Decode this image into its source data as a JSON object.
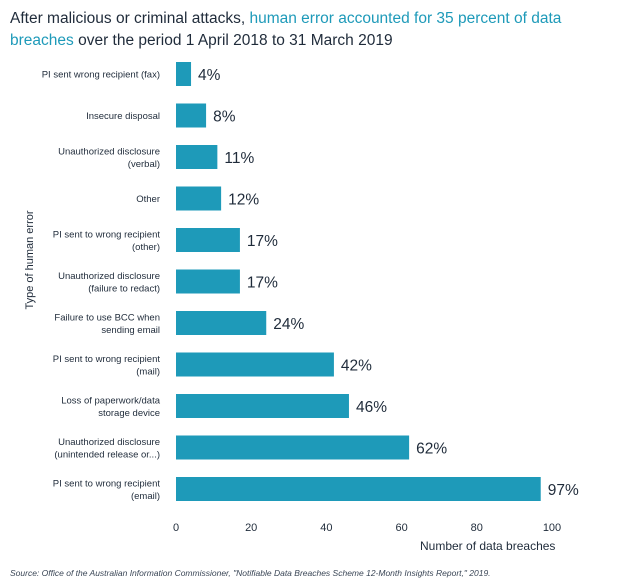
{
  "title": {
    "part1": "After malicious or criminal attacks, ",
    "highlight": "human error accounted for 35 percent of data breaches",
    "part2": " over the period 1 April 2018 to 31 March 2019"
  },
  "source": "Source: Office of the Australian Information Commissioner, \"Notifiable Data Breaches Scheme 12-Month Insights Report,\" 2019.",
  "colors": {
    "bar": "#1e9ab9",
    "highlight": "#1e9ab9",
    "text": "#1f2b3a"
  },
  "chart_data": {
    "type": "bar",
    "orientation": "horizontal",
    "ylabel": "Type of  human error",
    "xlabel": "Number of data breaches",
    "xlim": [
      0,
      100
    ],
    "xticks": [
      0,
      20,
      40,
      60,
      80,
      100
    ],
    "grid": false,
    "categories": [
      [
        "PI sent wrong recipient (fax)"
      ],
      [
        "Insecure disposal"
      ],
      [
        "Unauthorized disclosure",
        "(verbal)"
      ],
      [
        "Other"
      ],
      [
        "PI sent to wrong recipient",
        "(other)"
      ],
      [
        "Unauthorized disclosure",
        "(failure to redact)"
      ],
      [
        "Failure to use BCC when",
        "sending email"
      ],
      [
        "PI sent to wrong recipient",
        "(mail)"
      ],
      [
        "Loss of paperwork/data",
        "storage device"
      ],
      [
        "Unauthorized disclosure",
        "(unintended release or...)"
      ],
      [
        "PI sent to wrong recipient",
        "(email)"
      ]
    ],
    "values": [
      4,
      8,
      11,
      12,
      17,
      17,
      24,
      42,
      46,
      62,
      97
    ],
    "labels": [
      "4%",
      "8%",
      "11%",
      "12%",
      "17%",
      "17%",
      "24%",
      "42%",
      "46%",
      "62%",
      "97%"
    ]
  }
}
